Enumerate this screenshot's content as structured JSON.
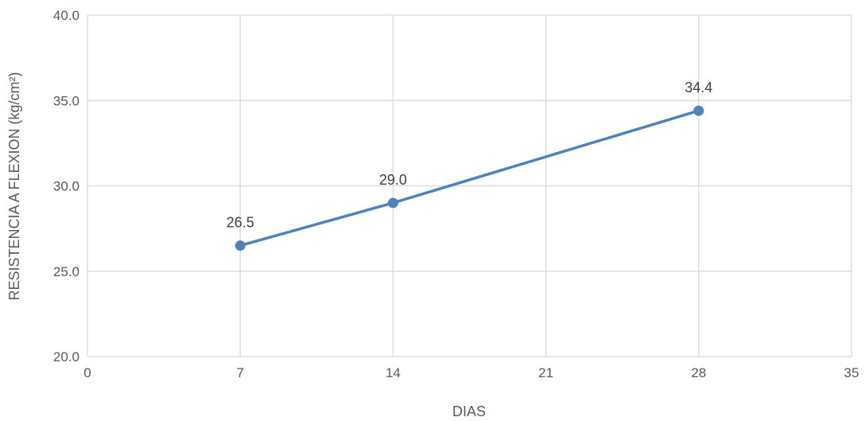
{
  "chart_data": {
    "type": "line",
    "title": "",
    "xlabel": "DIAS",
    "ylabel": "RESISTENCIA A FLEXION (kg/cm²)",
    "xlim": [
      0,
      35
    ],
    "ylim": [
      20,
      40
    ],
    "x_ticks": [
      "0",
      "7",
      "14",
      "21",
      "28",
      "35"
    ],
    "y_ticks": [
      "20.0",
      "25.0",
      "30.0",
      "35.0",
      "40.0"
    ],
    "grid": true,
    "legend": "none",
    "series": [
      {
        "color": "#4f81bd",
        "x": [
          7,
          14,
          28
        ],
        "y": [
          26.5,
          29.0,
          34.4
        ],
        "labels": [
          "26.5",
          "29.0",
          "34.4"
        ]
      }
    ]
  }
}
